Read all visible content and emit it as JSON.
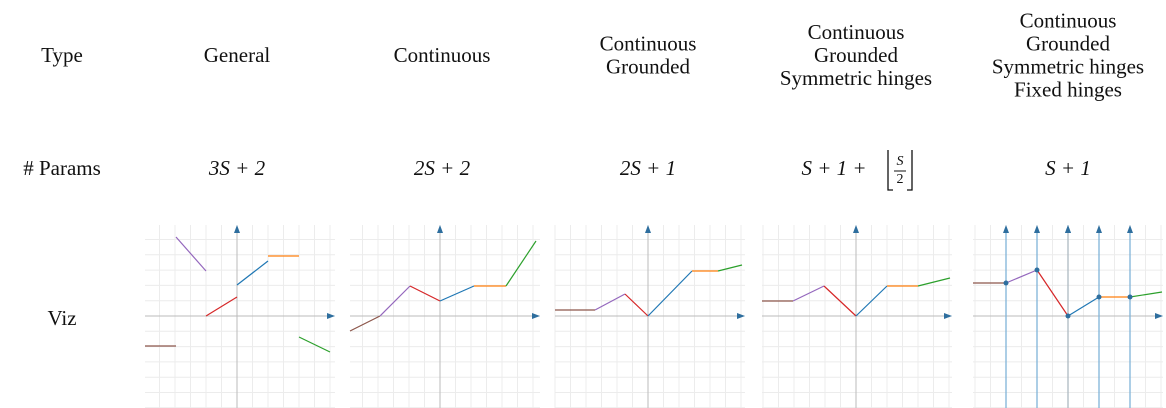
{
  "table": {
    "row_labels": [
      "Type",
      "# Params",
      "Viz"
    ],
    "types": [
      [
        "General"
      ],
      [
        "Continuous"
      ],
      [
        "Continuous",
        "Grounded"
      ],
      [
        "Continuous",
        "Grounded",
        "Symmetric hinges"
      ],
      [
        "Continuous",
        "Grounded",
        "Symmetric hinges",
        "Fixed hinges"
      ]
    ],
    "params": [
      {
        "text": "3S + 2"
      },
      {
        "text": "2S + 2"
      },
      {
        "text": "2S + 1"
      },
      {
        "text": "S + 1 + ",
        "numerator": "S",
        "denominator": "2"
      },
      {
        "text": "S + 1"
      }
    ]
  }
}
